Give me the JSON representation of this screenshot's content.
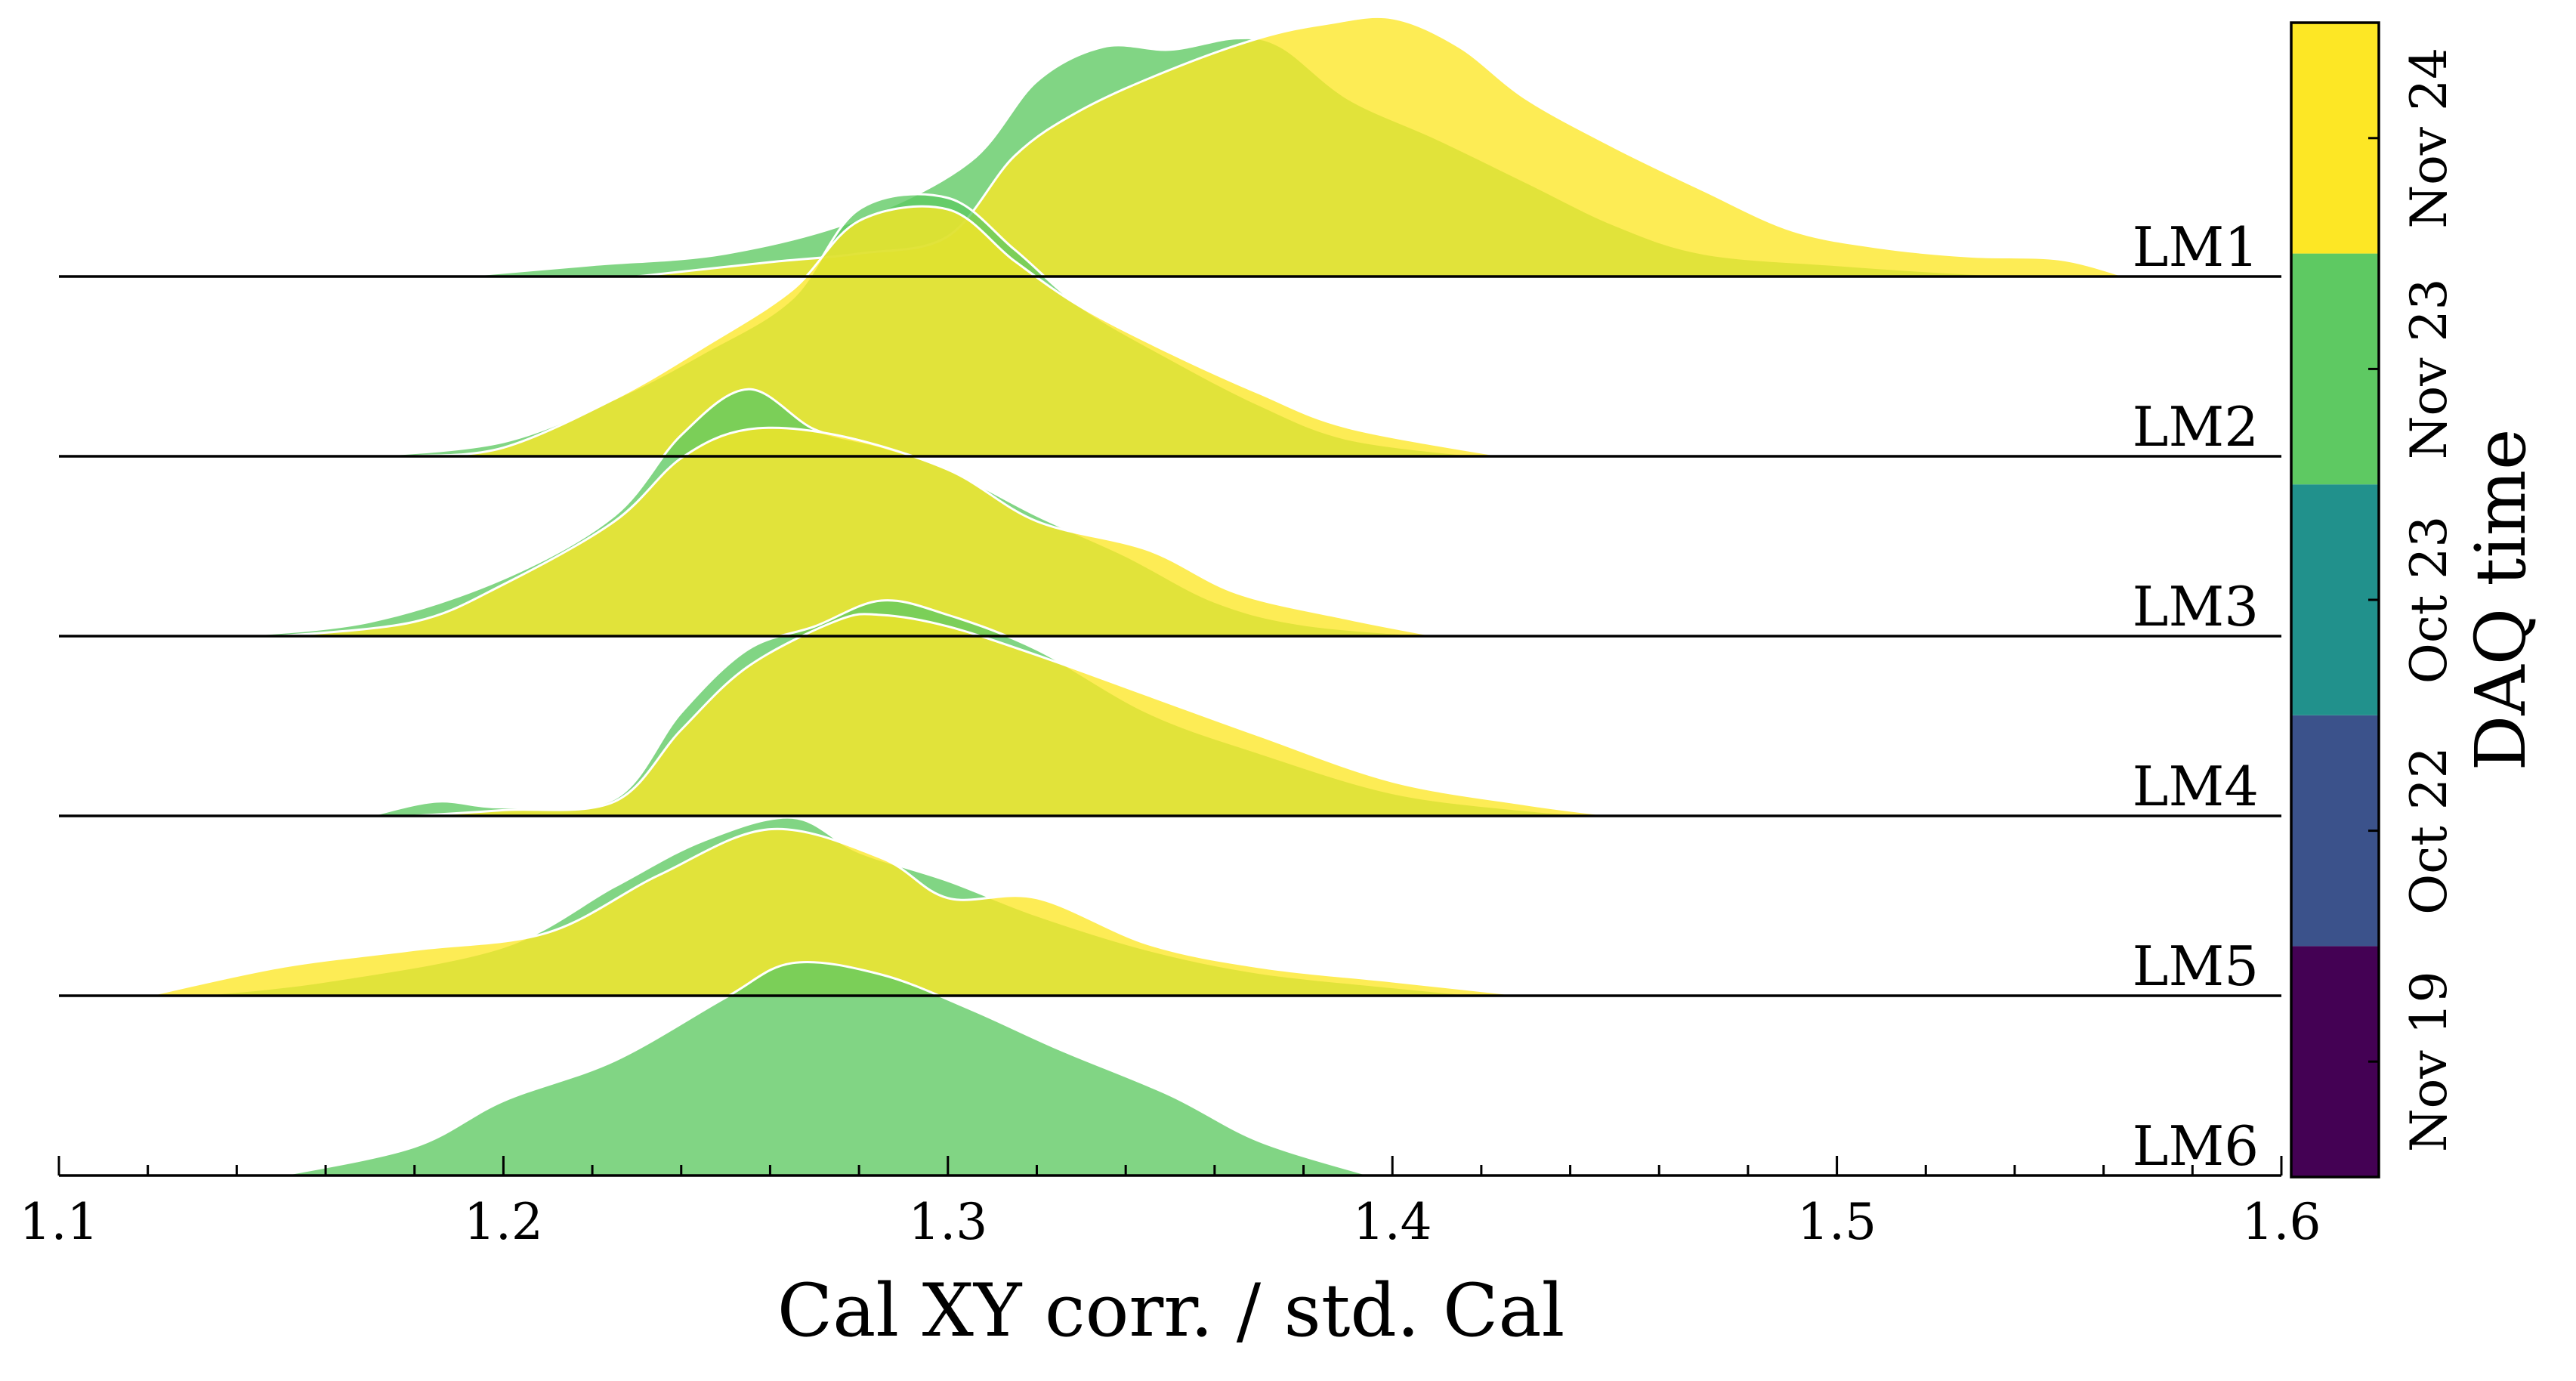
{
  "chart_data": {
    "type": "area",
    "subtype": "ridgeline",
    "xlabel": "Cal XY corr. / std. Cal",
    "xlim": [
      1.1,
      1.6
    ],
    "xticks": [
      "1.1",
      "1.2",
      "1.3",
      "1.4",
      "1.5",
      "1.6"
    ],
    "rows": [
      "LM1",
      "LM2",
      "LM3",
      "LM4",
      "LM5",
      "LM6"
    ],
    "colorbar": {
      "label": "DAQ time",
      "entries": [
        {
          "label": "Nov 19",
          "color": "#440154"
        },
        {
          "label": "Oct 22",
          "color": "#3b528b"
        },
        {
          "label": "Oct 23",
          "color": "#21918c"
        },
        {
          "label": "Nov 23",
          "color": "#5ec962"
        },
        {
          "label": "Nov 24",
          "color": "#fde725"
        }
      ]
    },
    "series": [
      {
        "row": "LM1",
        "daq": "Nov 23",
        "color": "#5ec962",
        "points": [
          [
            1.19,
            0.0
          ],
          [
            1.22,
            0.04
          ],
          [
            1.25,
            0.08
          ],
          [
            1.28,
            0.2
          ],
          [
            1.305,
            0.4
          ],
          [
            1.32,
            0.68
          ],
          [
            1.335,
            0.8
          ],
          [
            1.35,
            0.79
          ],
          [
            1.365,
            0.83
          ],
          [
            1.375,
            0.8
          ],
          [
            1.39,
            0.62
          ],
          [
            1.41,
            0.48
          ],
          [
            1.43,
            0.33
          ],
          [
            1.45,
            0.18
          ],
          [
            1.47,
            0.08
          ],
          [
            1.5,
            0.04
          ],
          [
            1.53,
            0.01
          ],
          [
            1.55,
            0.0
          ]
        ]
      },
      {
        "row": "LM1",
        "daq": "Nov 24",
        "color": "#fde725",
        "points": [
          [
            1.23,
            0.0
          ],
          [
            1.26,
            0.05
          ],
          [
            1.28,
            0.08
          ],
          [
            1.3,
            0.14
          ],
          [
            1.315,
            0.42
          ],
          [
            1.33,
            0.58
          ],
          [
            1.35,
            0.72
          ],
          [
            1.37,
            0.83
          ],
          [
            1.385,
            0.88
          ],
          [
            1.4,
            0.9
          ],
          [
            1.415,
            0.8
          ],
          [
            1.43,
            0.62
          ],
          [
            1.45,
            0.45
          ],
          [
            1.47,
            0.3
          ],
          [
            1.49,
            0.16
          ],
          [
            1.51,
            0.1
          ],
          [
            1.53,
            0.07
          ],
          [
            1.55,
            0.06
          ],
          [
            1.565,
            0.0
          ]
        ]
      },
      {
        "row": "LM2",
        "daq": "Nov 23",
        "color": "#5ec962",
        "points": [
          [
            1.17,
            0.0
          ],
          [
            1.2,
            0.05
          ],
          [
            1.225,
            0.2
          ],
          [
            1.245,
            0.36
          ],
          [
            1.265,
            0.55
          ],
          [
            1.28,
            0.86
          ],
          [
            1.3,
            0.9
          ],
          [
            1.315,
            0.72
          ],
          [
            1.33,
            0.52
          ],
          [
            1.35,
            0.34
          ],
          [
            1.37,
            0.18
          ],
          [
            1.39,
            0.06
          ],
          [
            1.42,
            0.0
          ]
        ]
      },
      {
        "row": "LM2",
        "daq": "Nov 24",
        "color": "#fde725",
        "points": [
          [
            1.18,
            0.0
          ],
          [
            1.2,
            0.03
          ],
          [
            1.225,
            0.2
          ],
          [
            1.245,
            0.38
          ],
          [
            1.265,
            0.58
          ],
          [
            1.28,
            0.82
          ],
          [
            1.3,
            0.86
          ],
          [
            1.315,
            0.68
          ],
          [
            1.33,
            0.52
          ],
          [
            1.35,
            0.36
          ],
          [
            1.37,
            0.22
          ],
          [
            1.39,
            0.1
          ],
          [
            1.425,
            0.0
          ]
        ]
      },
      {
        "row": "LM3",
        "daq": "Nov 23",
        "color": "#5ec962",
        "points": [
          [
            1.14,
            0.0
          ],
          [
            1.17,
            0.05
          ],
          [
            1.2,
            0.2
          ],
          [
            1.225,
            0.42
          ],
          [
            1.24,
            0.7
          ],
          [
            1.255,
            0.86
          ],
          [
            1.27,
            0.72
          ],
          [
            1.285,
            0.66
          ],
          [
            1.3,
            0.58
          ],
          [
            1.32,
            0.42
          ],
          [
            1.34,
            0.28
          ],
          [
            1.36,
            0.12
          ],
          [
            1.38,
            0.04
          ],
          [
            1.41,
            0.0
          ]
        ]
      },
      {
        "row": "LM3",
        "daq": "Nov 24",
        "color": "#fde725",
        "points": [
          [
            1.15,
            0.0
          ],
          [
            1.18,
            0.05
          ],
          [
            1.2,
            0.18
          ],
          [
            1.225,
            0.4
          ],
          [
            1.24,
            0.62
          ],
          [
            1.255,
            0.72
          ],
          [
            1.275,
            0.7
          ],
          [
            1.3,
            0.58
          ],
          [
            1.32,
            0.4
          ],
          [
            1.345,
            0.3
          ],
          [
            1.365,
            0.15
          ],
          [
            1.39,
            0.06
          ],
          [
            1.41,
            0.0
          ]
        ]
      },
      {
        "row": "LM4",
        "daq": "Nov 23",
        "color": "#5ec962",
        "points": [
          [
            1.17,
            0.0
          ],
          [
            1.185,
            0.05
          ],
          [
            1.2,
            0.03
          ],
          [
            1.225,
            0.06
          ],
          [
            1.24,
            0.36
          ],
          [
            1.255,
            0.58
          ],
          [
            1.27,
            0.66
          ],
          [
            1.285,
            0.75
          ],
          [
            1.3,
            0.7
          ],
          [
            1.32,
            0.58
          ],
          [
            1.345,
            0.36
          ],
          [
            1.37,
            0.22
          ],
          [
            1.4,
            0.08
          ],
          [
            1.43,
            0.02
          ],
          [
            1.45,
            0.0
          ]
        ]
      },
      {
        "row": "LM4",
        "daq": "Nov 24",
        "color": "#fde725",
        "points": [
          [
            1.18,
            0.0
          ],
          [
            1.2,
            0.02
          ],
          [
            1.225,
            0.05
          ],
          [
            1.24,
            0.3
          ],
          [
            1.255,
            0.52
          ],
          [
            1.275,
            0.68
          ],
          [
            1.285,
            0.7
          ],
          [
            1.3,
            0.66
          ],
          [
            1.32,
            0.56
          ],
          [
            1.345,
            0.42
          ],
          [
            1.37,
            0.28
          ],
          [
            1.4,
            0.12
          ],
          [
            1.43,
            0.04
          ],
          [
            1.45,
            0.0
          ]
        ]
      },
      {
        "row": "LM5",
        "daq": "Nov 23",
        "color": "#5ec962",
        "points": [
          [
            1.13,
            0.0
          ],
          [
            1.16,
            0.05
          ],
          [
            1.2,
            0.17
          ],
          [
            1.225,
            0.38
          ],
          [
            1.245,
            0.54
          ],
          [
            1.265,
            0.62
          ],
          [
            1.28,
            0.5
          ],
          [
            1.3,
            0.4
          ],
          [
            1.32,
            0.28
          ],
          [
            1.345,
            0.16
          ],
          [
            1.37,
            0.08
          ],
          [
            1.4,
            0.03
          ],
          [
            1.42,
            0.0
          ]
        ]
      },
      {
        "row": "LM5",
        "daq": "Nov 24",
        "color": "#fde725",
        "points": [
          [
            1.12,
            0.0
          ],
          [
            1.15,
            0.1
          ],
          [
            1.18,
            0.16
          ],
          [
            1.21,
            0.22
          ],
          [
            1.235,
            0.42
          ],
          [
            1.26,
            0.58
          ],
          [
            1.285,
            0.48
          ],
          [
            1.3,
            0.34
          ],
          [
            1.32,
            0.34
          ],
          [
            1.345,
            0.18
          ],
          [
            1.37,
            0.1
          ],
          [
            1.4,
            0.05
          ],
          [
            1.43,
            0.0
          ]
        ]
      },
      {
        "row": "LM6",
        "daq": "Nov 23",
        "color": "#5ec962",
        "points": [
          [
            1.15,
            0.0
          ],
          [
            1.18,
            0.1
          ],
          [
            1.2,
            0.26
          ],
          [
            1.225,
            0.4
          ],
          [
            1.25,
            0.62
          ],
          [
            1.265,
            0.74
          ],
          [
            1.285,
            0.7
          ],
          [
            1.305,
            0.58
          ],
          [
            1.325,
            0.44
          ],
          [
            1.35,
            0.28
          ],
          [
            1.37,
            0.12
          ],
          [
            1.395,
            0.0
          ]
        ]
      }
    ]
  }
}
